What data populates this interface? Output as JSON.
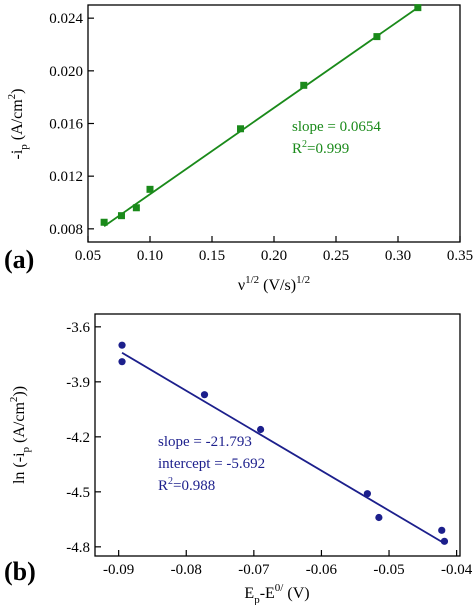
{
  "chart_data": [
    {
      "type": "scatter",
      "panel_label": "(a)",
      "color": "#1a8a1a",
      "marker": "square",
      "xlabel": {
        "base": "ν",
        "sup": "1/2",
        "mid": " (V/s)",
        "sup2": "1/2"
      },
      "ylabel": {
        "pre": "-i",
        "sub": "p",
        "mid": " (A/cm",
        "sup": "2",
        "post": ")"
      },
      "xlim": [
        0.05,
        0.35
      ],
      "ylim": [
        0.007,
        0.025
      ],
      "xticks": [
        0.05,
        0.1,
        0.15,
        0.2,
        0.25,
        0.3,
        0.35
      ],
      "xtick_labels": [
        "0.05",
        "0.10",
        "0.15",
        "0.20",
        "0.25",
        "0.30",
        "0.35"
      ],
      "yticks": [
        0.008,
        0.012,
        0.016,
        0.02,
        0.024
      ],
      "ytick_labels": [
        "0.008",
        "0.012",
        "0.016",
        "0.020",
        "0.024"
      ],
      "points": [
        {
          "x": 0.063,
          "y": 0.0085
        },
        {
          "x": 0.077,
          "y": 0.009
        },
        {
          "x": 0.089,
          "y": 0.0096
        },
        {
          "x": 0.1,
          "y": 0.011
        },
        {
          "x": 0.173,
          "y": 0.0156
        },
        {
          "x": 0.224,
          "y": 0.0189
        },
        {
          "x": 0.283,
          "y": 0.0226
        },
        {
          "x": 0.316,
          "y": 0.0248
        }
      ],
      "fit": {
        "slope": 0.0654,
        "x_start": 0.063,
        "x_end": 0.316,
        "y_start": 0.0082,
        "y_end": 0.0248
      },
      "annotation": {
        "slope_text": "slope = 0.0654",
        "r2_pre": "R",
        "r2_sup": "2",
        "r2_post": "=0.999"
      }
    },
    {
      "type": "scatter",
      "panel_label": "(b)",
      "color": "#1c1f8c",
      "marker": "circle",
      "xlabel": {
        "pre": "E",
        "sub": "p",
        "mid": "-E",
        "sup": "0/",
        "post": " (V)"
      },
      "ylabel": {
        "pre": "ln (-i",
        "sub": "p",
        "mid": " (A/cm",
        "sup": "2",
        "post": "))"
      },
      "xlim": [
        -0.0935,
        -0.0395
      ],
      "ylim": [
        -4.85,
        -3.53
      ],
      "xticks": [
        -0.09,
        -0.08,
        -0.07,
        -0.06,
        -0.05,
        -0.04
      ],
      "xtick_labels": [
        "-0.09",
        "-0.08",
        "-0.07",
        "-0.06",
        "-0.05",
        "-0.04"
      ],
      "yticks": [
        -4.8,
        -4.5,
        -4.2,
        -3.9,
        -3.6
      ],
      "ytick_labels": [
        "-4.8",
        "-4.5",
        "-4.2",
        "-3.9",
        "-3.6"
      ],
      "points": [
        {
          "x": -0.0895,
          "y": -3.7
        },
        {
          "x": -0.0895,
          "y": -3.79
        },
        {
          "x": -0.0773,
          "y": -3.97
        },
        {
          "x": -0.069,
          "y": -4.16
        },
        {
          "x": -0.0532,
          "y": -4.51
        },
        {
          "x": -0.0515,
          "y": -4.64
        },
        {
          "x": -0.0422,
          "y": -4.71
        },
        {
          "x": -0.0418,
          "y": -4.77
        }
      ],
      "fit": {
        "slope": -21.793,
        "intercept": -5.692,
        "x_start": -0.0895,
        "x_end": -0.0418
      },
      "annotation": {
        "slope_text": "slope = -21.793",
        "intercept_text": "intercept = -5.692",
        "r2_pre": "R",
        "r2_sup": "2",
        "r2_post": "=0.988"
      }
    }
  ]
}
